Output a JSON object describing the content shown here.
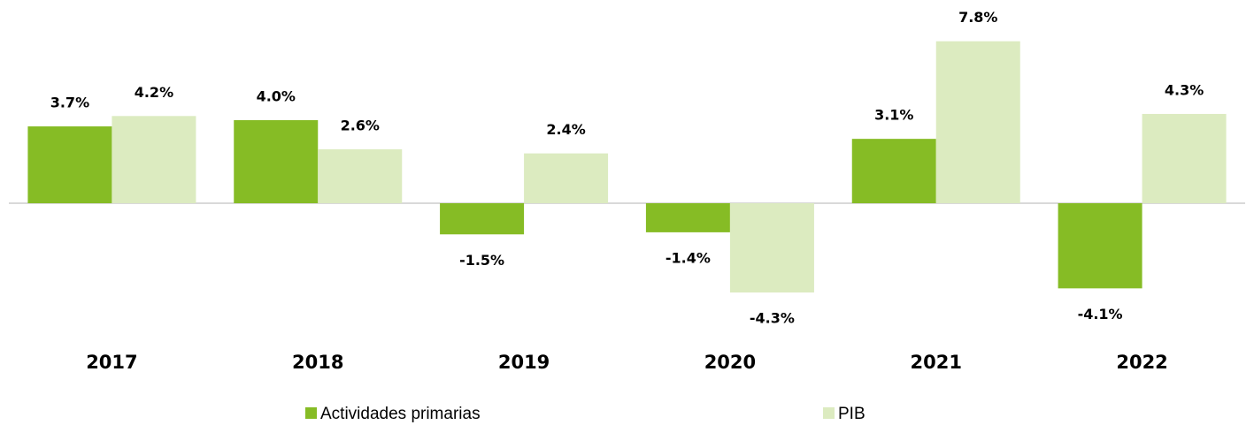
{
  "chart_data": {
    "type": "bar",
    "categories": [
      "2017",
      "2018",
      "2019",
      "2020",
      "2021",
      "2022"
    ],
    "series": [
      {
        "name": "Actividades primarias",
        "color": "#86bc25",
        "values": [
          3.7,
          4.0,
          -1.5,
          -1.4,
          3.1,
          -4.1
        ],
        "value_labels": [
          "3.7%",
          "4.0%",
          "-1.5%",
          "-1.4%",
          "3.1%",
          "-4.1%"
        ]
      },
      {
        "name": "PIB",
        "color": "#dcebc0",
        "values": [
          4.2,
          2.6,
          2.4,
          -4.3,
          7.8,
          4.3
        ],
        "value_labels": [
          "4.2%",
          "2.6%",
          "2.4%",
          "-4.3%",
          "7.8%",
          "4.3%"
        ]
      }
    ]
  }
}
